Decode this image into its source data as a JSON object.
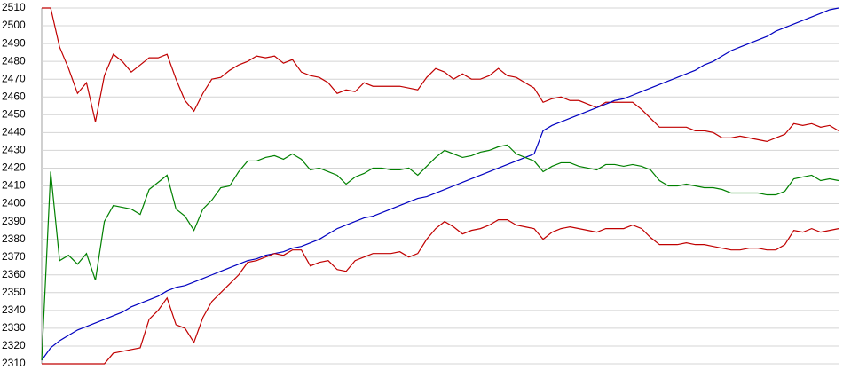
{
  "chart_data": {
    "type": "line",
    "categories": [
      null,
      null,
      null,
      null,
      null,
      null,
      null,
      null,
      null,
      null,
      null,
      null,
      null,
      null,
      null,
      null,
      null,
      null,
      null,
      null,
      null,
      null,
      null,
      null,
      null,
      null,
      null,
      null,
      null,
      null,
      null,
      null,
      null,
      null,
      null,
      null,
      null,
      null,
      null,
      null,
      null,
      null,
      null,
      null,
      null,
      null,
      null,
      null,
      null,
      null,
      null,
      null,
      null,
      null,
      null,
      null,
      null,
      null,
      null,
      null,
      null,
      null,
      null,
      null,
      null,
      null,
      null,
      null,
      null,
      null,
      null,
      null,
      null,
      null,
      null,
      null,
      null,
      null,
      null,
      null,
      null,
      null,
      null,
      null,
      null,
      null,
      null,
      null,
      null,
      null
    ],
    "series": [
      {
        "color": "#c00000",
        "values": [
          2510,
          2510,
          2488,
          2476,
          2462,
          2468,
          2446,
          2472,
          2484,
          2480,
          2474,
          2478,
          2482,
          2482,
          2484,
          2470,
          2458,
          2452,
          2462,
          2470,
          2471,
          2475,
          2478,
          2480,
          2483,
          2482,
          2483,
          2479,
          2481,
          2474,
          2472,
          2471,
          2468,
          2462,
          2464,
          2463,
          2468,
          2466,
          2466,
          2466,
          2466,
          2465,
          2464,
          2471,
          2476,
          2474,
          2470,
          2473,
          2470,
          2470,
          2472,
          2476,
          2472,
          2471,
          2468,
          2465,
          2457,
          2459,
          2460,
          2458,
          2458,
          2456,
          2454,
          2457,
          2457,
          2457,
          2457,
          2453,
          2448,
          2443,
          2443,
          2443,
          2443,
          2441,
          2441,
          2440,
          2437,
          2437,
          2438,
          2437,
          2436,
          2435,
          2437,
          2439,
          2445,
          2444,
          2445,
          2443,
          2444,
          2441
        ]
      },
      {
        "color": "#0000c0",
        "values": [
          2312,
          2319,
          2323,
          2326,
          2329,
          2331,
          2333,
          2335,
          2337,
          2339,
          2342,
          2344,
          2346,
          2348,
          2351,
          2353,
          2354,
          2356,
          2358,
          2360,
          2362,
          2364,
          2366,
          2368,
          2369,
          2371,
          2372,
          2373,
          2375,
          2376,
          2378,
          2380,
          2383,
          2386,
          2388,
          2390,
          2392,
          2393,
          2395,
          2397,
          2399,
          2401,
          2403,
          2404,
          2406,
          2408,
          2410,
          2412,
          2414,
          2416,
          2418,
          2420,
          2422,
          2424,
          2426,
          2428,
          2441,
          2444,
          2446,
          2448,
          2450,
          2452,
          2454,
          2456,
          2458,
          2459,
          2461,
          2463,
          2465,
          2467,
          2469,
          2471,
          2473,
          2475,
          2478,
          2480,
          2483,
          2486,
          2488,
          2490,
          2492,
          2494,
          2497,
          2499,
          2501,
          2503,
          2505,
          2507,
          2509,
          2510
        ]
      },
      {
        "color": "#008000",
        "values": [
          2312,
          2418,
          2368,
          2371,
          2366,
          2372,
          2357,
          2390,
          2399,
          2398,
          2397,
          2394,
          2408,
          2412,
          2416,
          2397,
          2393,
          2385,
          2397,
          2402,
          2409,
          2410,
          2418,
          2424,
          2424,
          2426,
          2427,
          2425,
          2428,
          2425,
          2419,
          2420,
          2418,
          2416,
          2411,
          2415,
          2417,
          2420,
          2420,
          2419,
          2419,
          2420,
          2416,
          2421,
          2426,
          2430,
          2428,
          2426,
          2427,
          2429,
          2430,
          2432,
          2433,
          2428,
          2426,
          2424,
          2418,
          2421,
          2423,
          2423,
          2421,
          2420,
          2419,
          2422,
          2422,
          2421,
          2422,
          2421,
          2419,
          2413,
          2410,
          2410,
          2411,
          2410,
          2409,
          2409,
          2408,
          2406,
          2406,
          2406,
          2406,
          2405,
          2405,
          2407,
          2414,
          2415,
          2416,
          2413,
          2414,
          2413
        ]
      },
      {
        "color": "#c00000",
        "values": [
          2310,
          2310,
          2310,
          2310,
          2310,
          2310,
          2310,
          2310,
          2316,
          2317,
          2318,
          2319,
          2335,
          2340,
          2347,
          2332,
          2330,
          2322,
          2336,
          2345,
          2350,
          2355,
          2360,
          2367,
          2368,
          2370,
          2372,
          2371,
          2374,
          2374,
          2365,
          2367,
          2368,
          2363,
          2362,
          2368,
          2370,
          2372,
          2372,
          2372,
          2373,
          2370,
          2372,
          2380,
          2386,
          2390,
          2387,
          2383,
          2385,
          2386,
          2388,
          2391,
          2391,
          2388,
          2387,
          2386,
          2380,
          2384,
          2386,
          2387,
          2386,
          2385,
          2384,
          2386,
          2386,
          2386,
          2388,
          2386,
          2381,
          2377,
          2377,
          2377,
          2378,
          2377,
          2377,
          2376,
          2375,
          2374,
          2374,
          2375,
          2375,
          2374,
          2374,
          2377,
          2385,
          2384,
          2386,
          2384,
          2385,
          2386
        ]
      }
    ],
    "ylim": [
      2310,
      2510
    ],
    "yticks": [
      2310,
      2320,
      2330,
      2340,
      2350,
      2360,
      2370,
      2380,
      2390,
      2400,
      2410,
      2420,
      2430,
      2440,
      2450,
      2460,
      2470,
      2480,
      2490,
      2500,
      2510
    ],
    "grid": true
  }
}
